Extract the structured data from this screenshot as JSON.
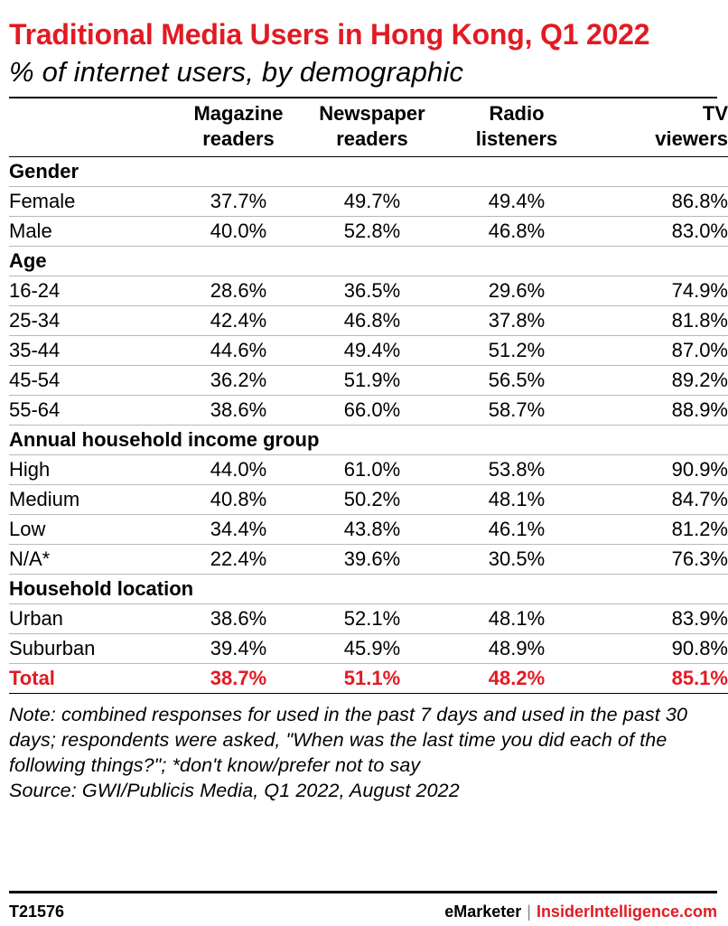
{
  "title": "Traditional Media Users in Hong Kong, Q1 2022",
  "subtitle": "% of internet users, by demographic",
  "colors": {
    "accent": "#e21a23",
    "text": "#000000",
    "rule": "#b8b8b8"
  },
  "chart_data": {
    "type": "table",
    "columns": [
      "",
      "Magazine readers",
      "Newspaper readers",
      "Radio listeners",
      "TV viewers"
    ],
    "groups": [
      {
        "name": "Gender",
        "rows": [
          {
            "label": "Female",
            "values": [
              "37.7%",
              "49.7%",
              "49.4%",
              "86.8%"
            ]
          },
          {
            "label": "Male",
            "values": [
              "40.0%",
              "52.8%",
              "46.8%",
              "83.0%"
            ]
          }
        ]
      },
      {
        "name": "Age",
        "rows": [
          {
            "label": "16-24",
            "values": [
              "28.6%",
              "36.5%",
              "29.6%",
              "74.9%"
            ]
          },
          {
            "label": "25-34",
            "values": [
              "42.4%",
              "46.8%",
              "37.8%",
              "81.8%"
            ]
          },
          {
            "label": "35-44",
            "values": [
              "44.6%",
              "49.4%",
              "51.2%",
              "87.0%"
            ]
          },
          {
            "label": "45-54",
            "values": [
              "36.2%",
              "51.9%",
              "56.5%",
              "89.2%"
            ]
          },
          {
            "label": "55-64",
            "values": [
              "38.6%",
              "66.0%",
              "58.7%",
              "88.9%"
            ]
          }
        ]
      },
      {
        "name": "Annual household income group",
        "rows": [
          {
            "label": "High",
            "values": [
              "44.0%",
              "61.0%",
              "53.8%",
              "90.9%"
            ]
          },
          {
            "label": "Medium",
            "values": [
              "40.8%",
              "50.2%",
              "48.1%",
              "84.7%"
            ]
          },
          {
            "label": "Low",
            "values": [
              "34.4%",
              "43.8%",
              "46.1%",
              "81.2%"
            ]
          },
          {
            "label": "N/A*",
            "values": [
              "22.4%",
              "39.6%",
              "30.5%",
              "76.3%"
            ]
          }
        ]
      },
      {
        "name": "Household location",
        "rows": [
          {
            "label": "Urban",
            "values": [
              "38.6%",
              "52.1%",
              "48.1%",
              "83.9%"
            ]
          },
          {
            "label": "Suburban",
            "values": [
              "39.4%",
              "45.9%",
              "48.9%",
              "90.8%"
            ]
          }
        ]
      }
    ],
    "total": {
      "label": "Total",
      "values": [
        "38.7%",
        "51.1%",
        "48.2%",
        "85.1%"
      ]
    }
  },
  "note": "Note: combined responses for used in the past 7 days and used in the past 30 days; respondents were asked, \"When was the last time you did each of the following things?\"; *don't know/prefer not to say",
  "source": "Source: GWI/Publicis Media, Q1 2022, August 2022",
  "footer": {
    "code": "T21576",
    "brand_left": "eMarketer",
    "separator": "|",
    "brand_right": "InsiderIntelligence.com"
  }
}
